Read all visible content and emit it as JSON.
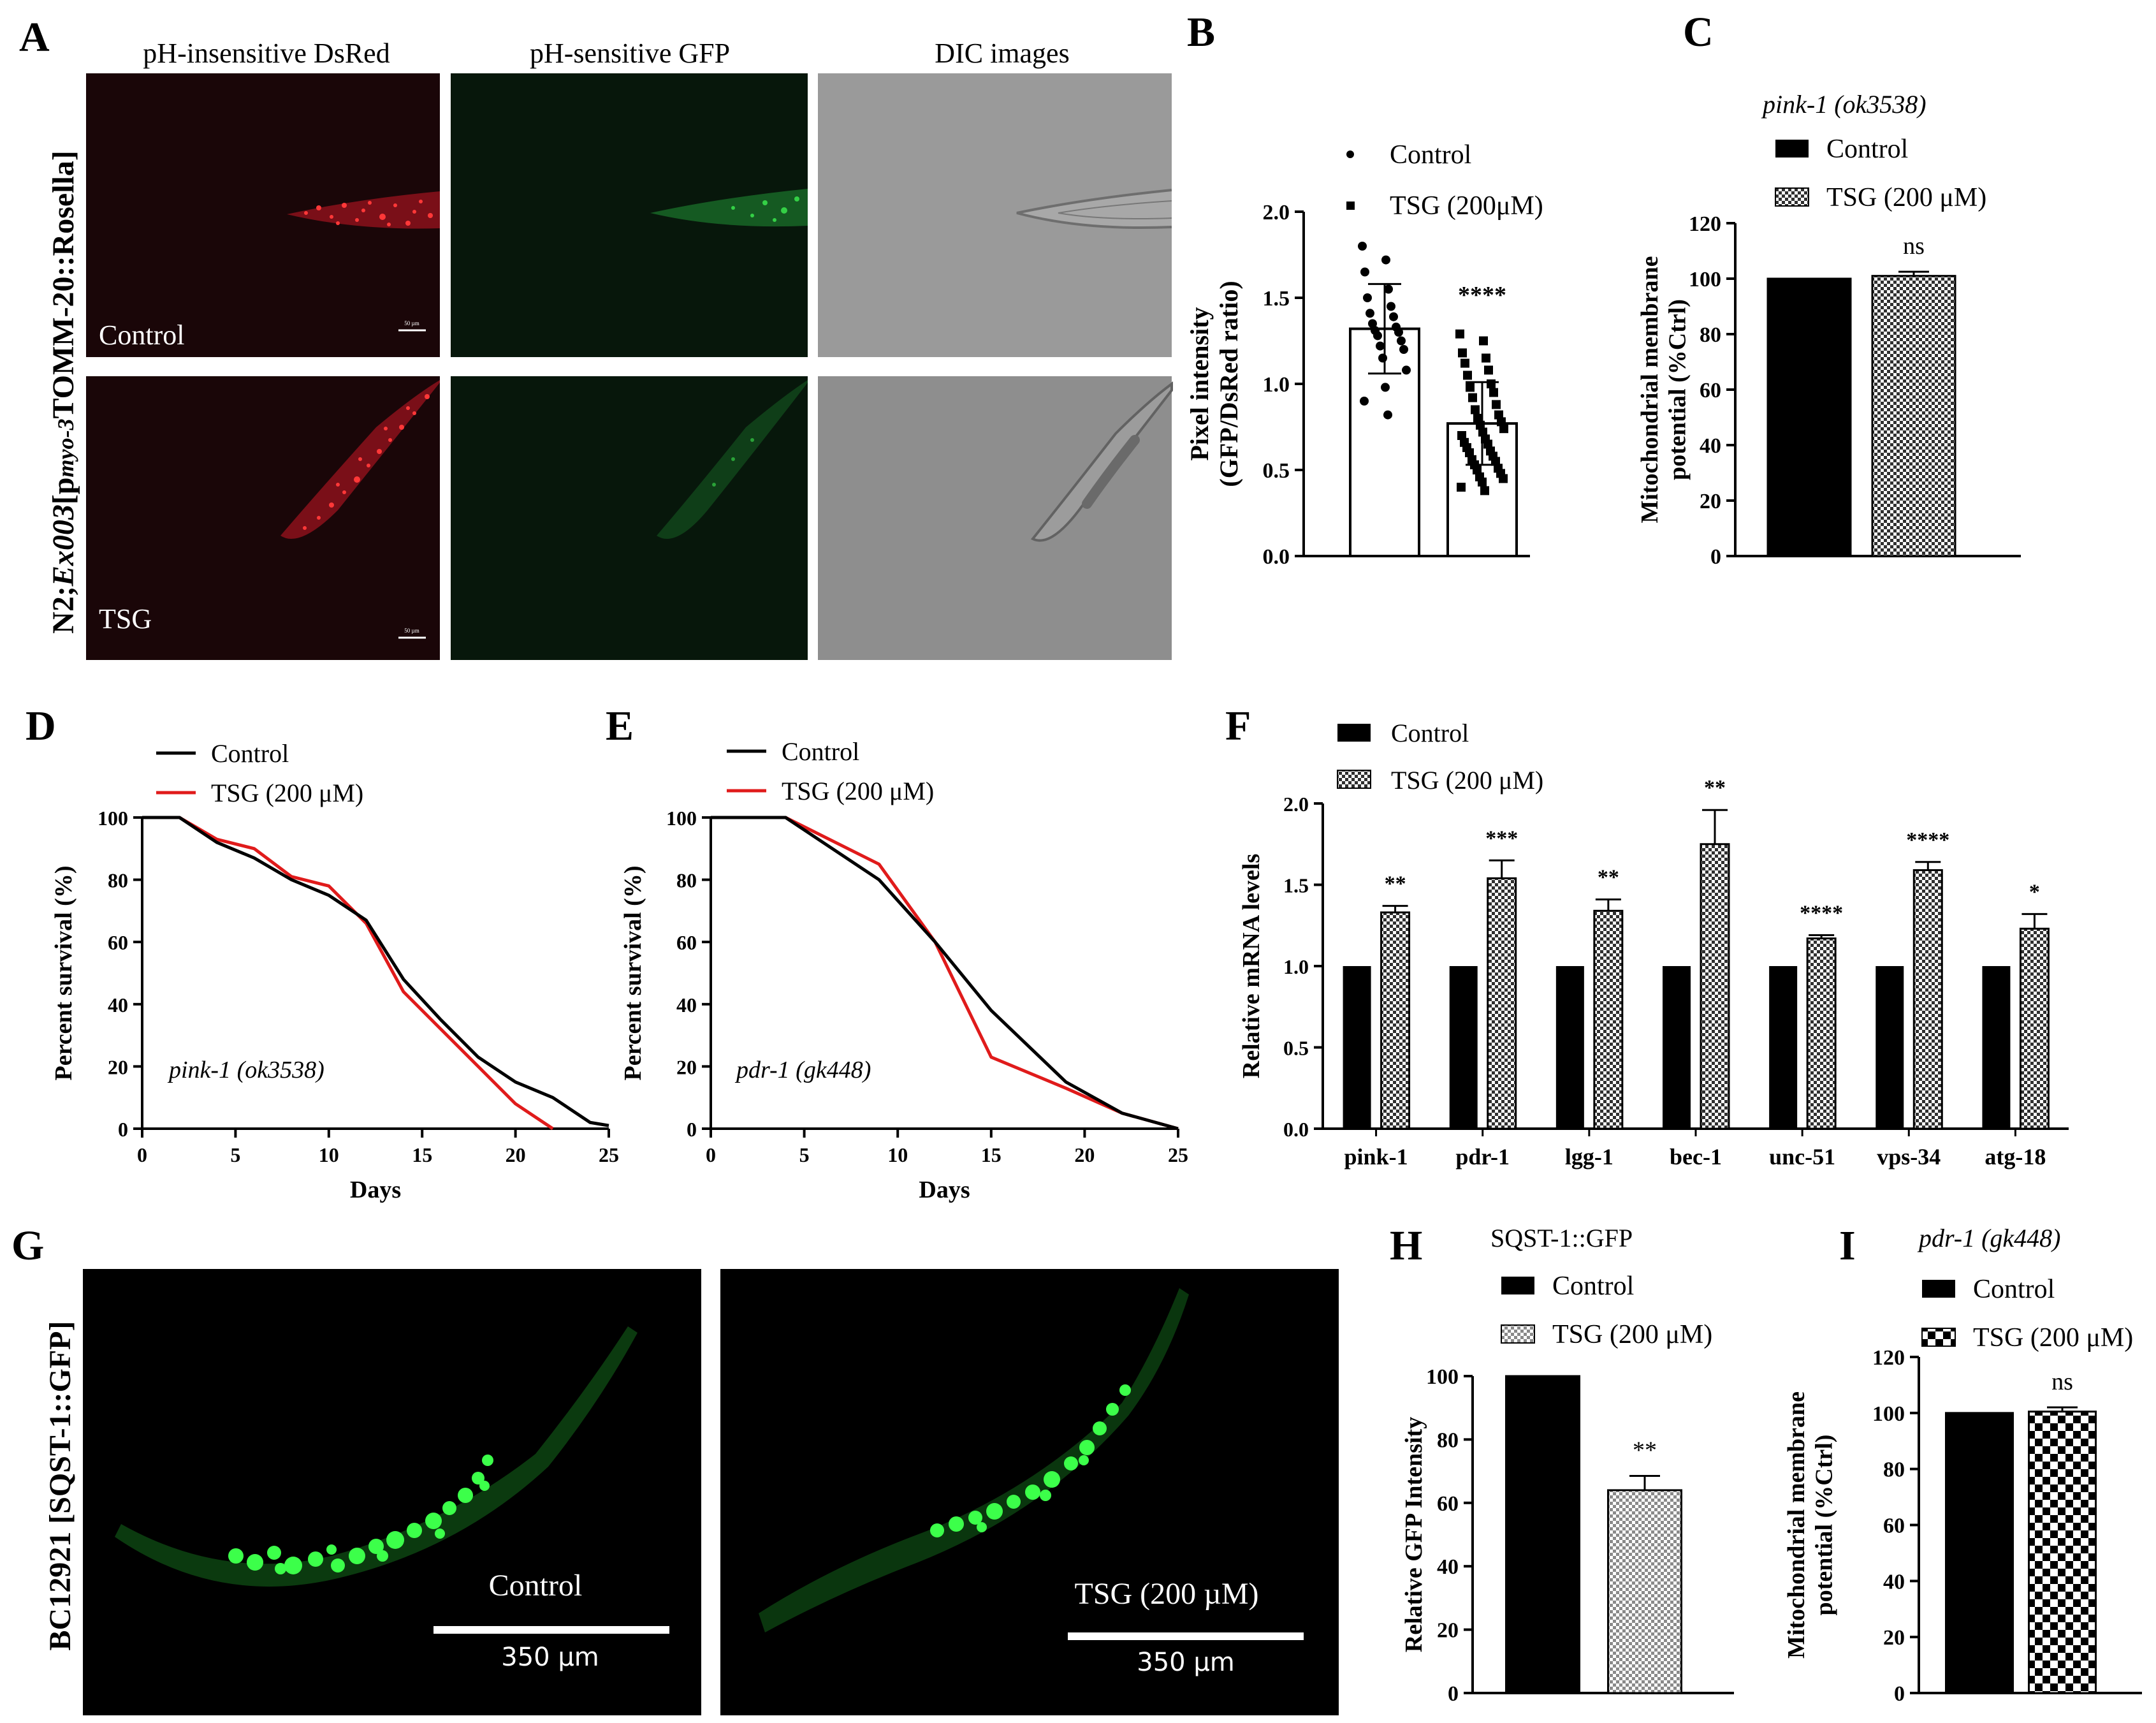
{
  "panel_letters": [
    "A",
    "B",
    "C",
    "D",
    "E",
    "F",
    "G",
    "H",
    "I"
  ],
  "panel_a": {
    "columns": [
      "pH-insensitive DsRed",
      "pH-sensitive GFP",
      "DIC images"
    ],
    "rows": [
      "Control",
      "TSG"
    ],
    "strain_parts": [
      "N2;",
      "Ex003",
      "[p",
      "myo-3",
      "TOMM-20::Rosella]"
    ],
    "scalebar": "50 µm",
    "colors": {
      "red": "#e0152a",
      "green": "#2bc43a",
      "dic": "#8c8c8c"
    }
  },
  "panel_g": {
    "strain": "BC12921 [SQST-1::GFP]",
    "images": [
      {
        "label": "Control",
        "scalebar": "350 µm"
      },
      {
        "label": "TSG (200 µM)",
        "scalebar": "350 µm"
      }
    ]
  },
  "chart_data": [
    {
      "panel": "B",
      "type": "bar",
      "categories": [
        "Control",
        "TSG (200μM)"
      ],
      "values": [
        1.32,
        0.77
      ],
      "sd": [
        0.26,
        0.24
      ],
      "points": [
        [
          1.8,
          1.72,
          1.65,
          1.55,
          1.5,
          1.45,
          1.41,
          1.39,
          1.35,
          1.33,
          1.31,
          1.3,
          1.28,
          1.25,
          1.22,
          1.2,
          1.15,
          1.08,
          0.98,
          0.9,
          0.82
        ],
        [
          1.29,
          1.25,
          1.18,
          1.15,
          1.12,
          1.08,
          1.05,
          1.0,
          0.98,
          0.95,
          0.92,
          0.88,
          0.85,
          0.82,
          0.8,
          0.78,
          0.76,
          0.74,
          0.72,
          0.7,
          0.68,
          0.66,
          0.65,
          0.63,
          0.61,
          0.6,
          0.58,
          0.56,
          0.55,
          0.53,
          0.51,
          0.5,
          0.48,
          0.46,
          0.45,
          0.43,
          0.4,
          0.38
        ]
      ],
      "legend": [
        "Control",
        "TSG (200μM)"
      ],
      "ylabel": [
        "Pixel intensity",
        "(GFP/DsRed ratio)"
      ],
      "ylim": [
        0,
        2.0
      ],
      "yticks": [
        "0.0",
        "0.5",
        "1.0",
        "1.5",
        "2.0"
      ],
      "annotations": [
        "",
        "****"
      ]
    },
    {
      "panel": "C",
      "type": "bar",
      "title": "pink-1 (ok3538)",
      "categories": [
        "Control",
        "TSG (200 μM)"
      ],
      "values": [
        100,
        101
      ],
      "err": [
        0,
        1.5
      ],
      "legend": [
        "Control",
        "TSG (200 μM)"
      ],
      "ylabel": [
        "Mitochondrial membrane",
        "potential (%Ctrl)"
      ],
      "ylim": [
        0,
        120
      ],
      "yticks": [
        "0",
        "20",
        "40",
        "60",
        "80",
        "100",
        "120"
      ],
      "annotations": [
        "",
        "ns"
      ]
    },
    {
      "panel": "D",
      "type": "line",
      "annotation": "pink-1 (ok3538)",
      "xlabel": "Days",
      "ylabel": "Percent survival (%)",
      "xlim": [
        0,
        25
      ],
      "ylim": [
        0,
        100
      ],
      "xticks": [
        "0",
        "5",
        "10",
        "15",
        "20",
        "25"
      ],
      "yticks": [
        "0",
        "20",
        "40",
        "60",
        "80",
        "100"
      ],
      "series": [
        {
          "name": "Control",
          "color": "#000000",
          "x": [
            0,
            2,
            4,
            6,
            8,
            10,
            12,
            14,
            16,
            18,
            20,
            22,
            24,
            25
          ],
          "y": [
            100,
            100,
            92,
            87,
            80,
            75,
            67,
            48,
            35,
            23,
            15,
            10,
            2,
            1
          ]
        },
        {
          "name": "TSG (200 μM)",
          "color": "#e01b1b",
          "x": [
            0,
            2,
            4,
            6,
            8,
            10,
            12,
            14,
            16,
            18,
            20,
            22
          ],
          "y": [
            100,
            100,
            93,
            90,
            81,
            78,
            66,
            44,
            32,
            20,
            8,
            0
          ]
        }
      ]
    },
    {
      "panel": "E",
      "type": "line",
      "annotation": "pdr-1 (gk448)",
      "xlabel": "Days",
      "ylabel": "Percent survival (%)",
      "xlim": [
        0,
        25
      ],
      "ylim": [
        0,
        100
      ],
      "xticks": [
        "0",
        "5",
        "10",
        "15",
        "20",
        "25"
      ],
      "yticks": [
        "0",
        "20",
        "40",
        "60",
        "80",
        "100"
      ],
      "series": [
        {
          "name": "Control",
          "color": "#000000",
          "x": [
            0,
            4,
            9,
            12,
            15,
            19,
            22,
            25
          ],
          "y": [
            100,
            100,
            80,
            60,
            38,
            15,
            5,
            0
          ]
        },
        {
          "name": "TSG (200 μM)",
          "color": "#e01b1b",
          "x": [
            0,
            4,
            9,
            12,
            15,
            19,
            22,
            25
          ],
          "y": [
            100,
            100,
            85,
            60,
            23,
            13,
            5,
            0
          ]
        }
      ]
    },
    {
      "panel": "F",
      "type": "bar",
      "categories": [
        "pink-1",
        "pdr-1",
        "lgg-1",
        "bec-1",
        "unc-51",
        "vps-34",
        "atg-18"
      ],
      "series": [
        {
          "name": "Control",
          "values": [
            1,
            1,
            1,
            1,
            1,
            1,
            1
          ],
          "err": [
            0,
            0,
            0,
            0,
            0,
            0,
            0
          ]
        },
        {
          "name": "TSG (200 μM)",
          "values": [
            1.33,
            1.54,
            1.34,
            1.75,
            1.17,
            1.59,
            1.23
          ],
          "err": [
            0.04,
            0.11,
            0.07,
            0.21,
            0.02,
            0.05,
            0.09
          ]
        }
      ],
      "annotations": [
        "**",
        "***",
        "**",
        "**",
        "****",
        "****",
        "*"
      ],
      "ylabel": "Relative mRNA levels",
      "ylim": [
        0,
        2.0
      ],
      "yticks": [
        "0.0",
        "0.5",
        "1.0",
        "1.5",
        "2.0"
      ]
    },
    {
      "panel": "H",
      "type": "bar",
      "title": "SQST-1::GFP",
      "categories": [
        "Control",
        "TSG (200 μM)"
      ],
      "values": [
        100,
        64
      ],
      "err": [
        0,
        4.5
      ],
      "legend": [
        "Control",
        "TSG (200 μM)"
      ],
      "ylabel": "Relative GFP Intensity",
      "ylim": [
        0,
        100
      ],
      "yticks": [
        "0",
        "20",
        "40",
        "60",
        "80",
        "100"
      ],
      "annotations": [
        "",
        "**"
      ]
    },
    {
      "panel": "I",
      "type": "bar",
      "title": "pdr-1 (gk448)",
      "categories": [
        "Control",
        "TSG (200 μM)"
      ],
      "values": [
        100,
        100.5
      ],
      "err": [
        0,
        1.5
      ],
      "legend": [
        "Control",
        "TSG (200 μM)"
      ],
      "ylabel": [
        "Mitochondrial membrane",
        "potential (%Ctrl)"
      ],
      "ylim": [
        0,
        120
      ],
      "yticks": [
        "0",
        "20",
        "40",
        "60",
        "80",
        "100",
        "120"
      ],
      "annotations": [
        "",
        "ns"
      ]
    }
  ]
}
